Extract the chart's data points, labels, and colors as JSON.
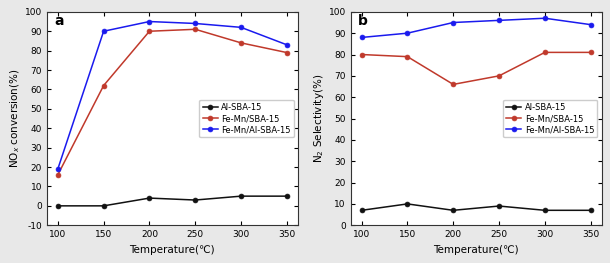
{
  "temperature": [
    100,
    150,
    200,
    250,
    300,
    350
  ],
  "panel_a": {
    "label": "a",
    "ylabel": "NO$_x$ conversion(%)",
    "xlabel": "Temperature(℃)",
    "ylim": [
      -10,
      100
    ],
    "yticks": [
      -10,
      0,
      10,
      20,
      30,
      40,
      50,
      60,
      70,
      80,
      90,
      100
    ],
    "series": {
      "Al-SBA-15": {
        "values": [
          0,
          0,
          4,
          3,
          5,
          5
        ],
        "color": "#111111",
        "marker": "o"
      },
      "Fe-Mn/SBA-15": {
        "values": [
          16,
          62,
          90,
          91,
          84,
          79
        ],
        "color": "#c0392b",
        "marker": "o"
      },
      "Fe-Mn/Al-SBA-15": {
        "values": [
          19,
          90,
          95,
          94,
          92,
          83
        ],
        "color": "#1a1aee",
        "marker": "o"
      }
    }
  },
  "panel_b": {
    "label": "b",
    "ylabel": "N$_2$ Selectivity(%)",
    "xlabel": "Temperature(℃)",
    "ylim": [
      0,
      100
    ],
    "yticks": [
      0,
      10,
      20,
      30,
      40,
      50,
      60,
      70,
      80,
      90,
      100
    ],
    "series": {
      "Al-SBA-15": {
        "values": [
          7,
          10,
          7,
          9,
          7,
          7
        ],
        "color": "#111111",
        "marker": "o"
      },
      "Fe-Mn/SBA-15": {
        "values": [
          80,
          79,
          66,
          70,
          81,
          81
        ],
        "color": "#c0392b",
        "marker": "o"
      },
      "Fe-Mn/Al-SBA-15": {
        "values": [
          88,
          90,
          95,
          96,
          97,
          94
        ],
        "color": "#1a1aee",
        "marker": "o"
      }
    }
  },
  "legend_order": [
    "Al-SBA-15",
    "Fe-Mn/SBA-15",
    "Fe-Mn/Al-SBA-15"
  ],
  "figure_bg": "#e8e8e8",
  "axes_bg": "#ffffff",
  "legend_loc_a": "center right",
  "legend_loc_b": "center right"
}
